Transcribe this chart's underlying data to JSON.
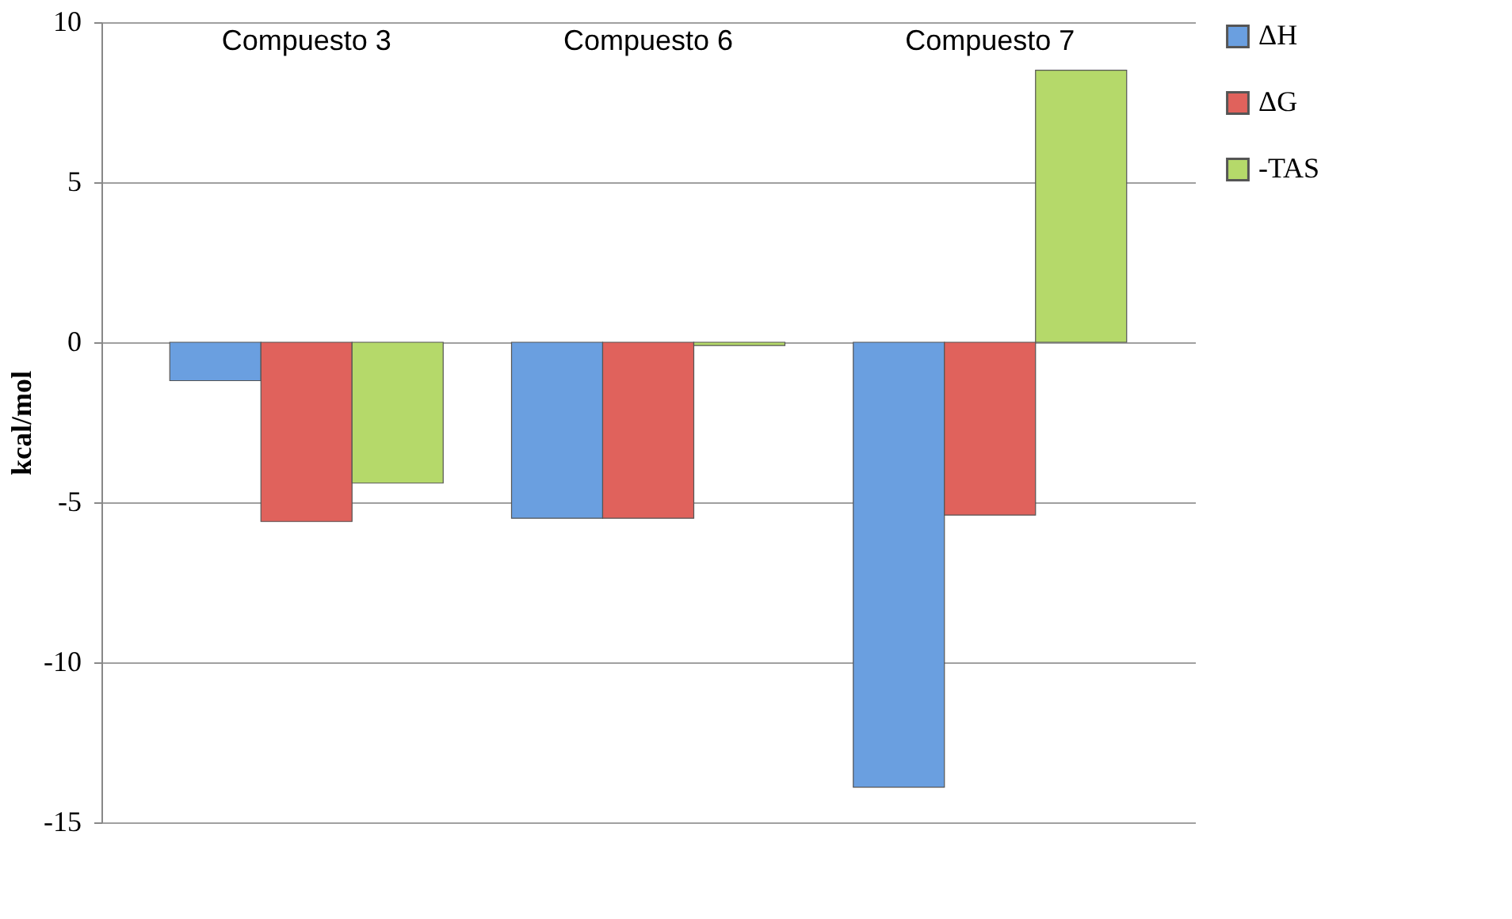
{
  "chart_data": {
    "type": "bar",
    "ylabel": "kcal/mol",
    "categories": [
      "Compuesto 3",
      "Compuesto 6",
      "Compuesto 7"
    ],
    "series": [
      {
        "name": "ΔH",
        "color": "#6a9fe0",
        "values": [
          -1.2,
          -5.5,
          -13.9
        ]
      },
      {
        "name": "ΔG",
        "color": "#e0625c",
        "values": [
          -5.6,
          -5.5,
          -5.4
        ]
      },
      {
        "name": "-TAS",
        "color": "#b5d96a",
        "values": [
          -4.4,
          -0.1,
          8.5
        ]
      }
    ],
    "ylim": [
      -15,
      10
    ],
    "yticks": [
      -15,
      -10,
      -5,
      0,
      5,
      10
    ],
    "grid": "y",
    "legend": "right"
  }
}
